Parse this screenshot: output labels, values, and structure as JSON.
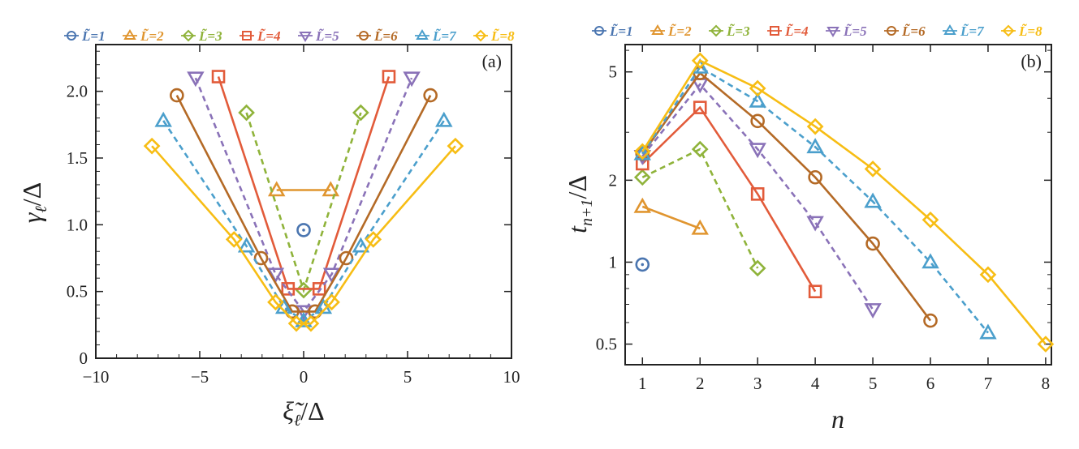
{
  "chart_data": [
    {
      "id": "a",
      "type": "line",
      "panel_label": "(a)",
      "title": "",
      "xlabel": {
        "main": "ξ̃",
        "sub": "ℓ",
        "unit": "/Δ"
      },
      "ylabel": {
        "main": "γ",
        "sub": "ℓ",
        "unit": "/Δ"
      },
      "xlim": [
        -10,
        10
      ],
      "ylim": [
        0,
        2.35
      ],
      "xscale": "linear",
      "yscale": "linear",
      "xticks": [
        -10,
        -5,
        0,
        5,
        10
      ],
      "yticks": [
        0,
        0.5,
        1.0,
        1.5,
        2.0
      ],
      "ytick_labels": [
        "0",
        "0.5",
        "1.0",
        "1.5",
        "2.0"
      ],
      "xtick_labels": [
        "−10",
        "−5",
        "0",
        "5",
        "10"
      ],
      "legend_position": "top",
      "series": [
        {
          "name": "L̃=1",
          "x": [
            0
          ],
          "y": [
            0.96
          ]
        },
        {
          "name": "L̃=2",
          "x": [
            -1.3,
            1.3
          ],
          "y": [
            1.26,
            1.26
          ]
        },
        {
          "name": "L̃=3",
          "x": [
            -2.75,
            0,
            2.75
          ],
          "y": [
            1.84,
            0.51,
            1.84
          ]
        },
        {
          "name": "L̃=4",
          "x": [
            -4.1,
            -0.75,
            0.75,
            4.1
          ],
          "y": [
            2.11,
            0.52,
            0.52,
            2.11
          ]
        },
        {
          "name": "L̃=5",
          "x": [
            -5.2,
            -1.35,
            0,
            1.35,
            5.2
          ],
          "y": [
            2.1,
            0.63,
            0.35,
            0.63,
            2.1
          ]
        },
        {
          "name": "L̃=6",
          "x": [
            -6.1,
            -2.05,
            -0.55,
            0.55,
            2.05,
            6.1
          ],
          "y": [
            1.97,
            0.75,
            0.35,
            0.35,
            0.75,
            1.97
          ]
        },
        {
          "name": "L̃=7",
          "x": [
            -6.75,
            -2.75,
            -0.95,
            0,
            0.95,
            2.75,
            6.75
          ],
          "y": [
            1.78,
            0.84,
            0.38,
            0.28,
            0.38,
            0.84,
            1.78
          ]
        },
        {
          "name": "L̃=8",
          "x": [
            -7.3,
            -3.35,
            -1.35,
            -0.35,
            0.35,
            1.35,
            3.35,
            7.3
          ],
          "y": [
            1.59,
            0.89,
            0.42,
            0.26,
            0.26,
            0.42,
            0.89,
            1.59
          ]
        }
      ]
    },
    {
      "id": "b",
      "type": "line",
      "panel_label": "(b)",
      "title": "",
      "xlabel": {
        "main": "n",
        "sub": "",
        "unit": ""
      },
      "ylabel": {
        "main": "t",
        "sub": "n+1",
        "unit": "/Δ"
      },
      "xlim": [
        0.7,
        8.1
      ],
      "ylim": [
        0.42,
        6.3
      ],
      "xscale": "linear",
      "yscale": "log",
      "xticks": [
        1,
        2,
        3,
        4,
        5,
        6,
        7,
        8
      ],
      "xtick_labels": [
        "1",
        "2",
        "3",
        "4",
        "5",
        "6",
        "7",
        "8"
      ],
      "yticks": [
        0.5,
        1,
        2,
        5
      ],
      "ytick_labels": [
        "0.5",
        "1",
        "2",
        "5"
      ],
      "legend_position": "top",
      "series": [
        {
          "name": "L̃=1",
          "x": [
            1
          ],
          "y": [
            0.98
          ]
        },
        {
          "name": "L̃=2",
          "x": [
            1,
            2
          ],
          "y": [
            1.6,
            1.33
          ]
        },
        {
          "name": "L̃=3",
          "x": [
            1,
            2,
            3
          ],
          "y": [
            2.05,
            2.6,
            0.95
          ]
        },
        {
          "name": "L̃=4",
          "x": [
            1,
            2,
            3,
            4
          ],
          "y": [
            2.3,
            3.7,
            1.78,
            0.78
          ]
        },
        {
          "name": "L̃=5",
          "x": [
            1,
            2,
            3,
            4,
            5
          ],
          "y": [
            2.45,
            4.5,
            2.6,
            1.4,
            0.67
          ]
        },
        {
          "name": "L̃=6",
          "x": [
            1,
            2,
            3,
            4,
            5,
            6
          ],
          "y": [
            2.5,
            4.95,
            3.3,
            2.05,
            1.17,
            0.61
          ]
        },
        {
          "name": "L̃=7",
          "x": [
            1,
            2,
            3,
            4,
            5,
            6,
            7
          ],
          "y": [
            2.5,
            5.2,
            3.9,
            2.65,
            1.67,
            1.0,
            0.55
          ]
        },
        {
          "name": "L̃=8",
          "x": [
            1,
            2,
            3,
            4,
            5,
            6,
            7,
            8
          ],
          "y": [
            2.55,
            5.5,
            4.35,
            3.15,
            2.2,
            1.43,
            0.9,
            0.5
          ]
        }
      ]
    }
  ],
  "styles": {
    "L̃=1": {
      "color": "#4a75b0",
      "marker": "circle-dot",
      "dash": "solid"
    },
    "L̃=2": {
      "color": "#e0952f",
      "marker": "triangle-up",
      "dash": "solid"
    },
    "L̃=3": {
      "color": "#8fb33a",
      "marker": "diamond",
      "dash": "dashed"
    },
    "L̃=4": {
      "color": "#e25b3a",
      "marker": "square",
      "dash": "solid"
    },
    "L̃=5": {
      "color": "#8a72b8",
      "marker": "triangle-down",
      "dash": "dashed"
    },
    "L̃=6": {
      "color": "#b46a26",
      "marker": "circle",
      "dash": "solid"
    },
    "L̃=7": {
      "color": "#4b9fcc",
      "marker": "triangle-up",
      "dash": "dashed"
    },
    "L̃=8": {
      "color": "#f7bd14",
      "marker": "diamond",
      "dash": "solid"
    }
  }
}
